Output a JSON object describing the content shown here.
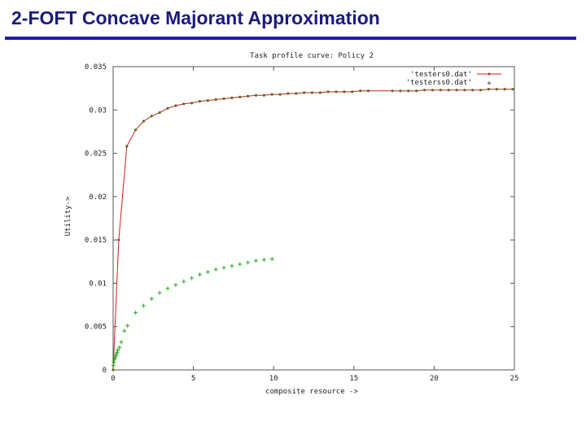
{
  "slide": {
    "title": "2-FOFT Concave Majorant Approximation"
  },
  "colors": {
    "title": "#1a1a80",
    "rule": "#1f1fa8",
    "series1": "#cc2020",
    "series2": "#22aa22"
  },
  "chart_data": {
    "type": "line",
    "title": "Task profile curve: Policy 2",
    "xlabel": "composite resource ->",
    "ylabel": "Utility->",
    "xlim": [
      0,
      25
    ],
    "ylim": [
      0,
      0.035
    ],
    "xticks": [
      "0",
      "5",
      "10",
      "15",
      "20",
      "25"
    ],
    "yticks": [
      "0",
      "0.005",
      "0.01",
      "0.015",
      "0.02",
      "0.025",
      "0.03",
      "0.035"
    ],
    "grid": false,
    "legend_position": "top-right",
    "series": [
      {
        "name": "'testers0.dat'",
        "style": "line with point markers",
        "x": [
          0,
          0.35,
          0.85,
          1.4,
          1.9,
          2.4,
          2.9,
          3.4,
          3.9,
          4.4,
          4.9,
          5.4,
          5.9,
          6.4,
          6.9,
          7.4,
          7.9,
          8.4,
          8.9,
          9.4,
          9.9,
          10.4,
          10.9,
          11.4,
          11.9,
          12.4,
          12.9,
          13.4,
          13.9,
          14.4,
          14.9,
          15.4,
          15.9,
          17.4,
          17.9,
          18.4,
          18.9,
          19.4,
          19.9,
          20.4,
          20.9,
          21.4,
          21.9,
          22.4,
          22.9,
          23.4,
          23.9,
          24.4,
          24.9
        ],
        "y": [
          0,
          0.015,
          0.0258,
          0.0277,
          0.0287,
          0.0293,
          0.0297,
          0.0302,
          0.0305,
          0.0307,
          0.0308,
          0.031,
          0.0311,
          0.0312,
          0.0313,
          0.0314,
          0.0315,
          0.0316,
          0.0317,
          0.0317,
          0.0318,
          0.0318,
          0.0319,
          0.0319,
          0.032,
          0.032,
          0.032,
          0.0321,
          0.0321,
          0.0321,
          0.0321,
          0.0322,
          0.0322,
          0.0322,
          0.0322,
          0.0322,
          0.0322,
          0.0323,
          0.0323,
          0.0323,
          0.0323,
          0.0323,
          0.0323,
          0.0323,
          0.0323,
          0.0324,
          0.0324,
          0.0324,
          0.0324
        ]
      },
      {
        "name": "'testerss0.dat'",
        "style": "plus markers",
        "x": [
          0.02,
          0.05,
          0.08,
          0.12,
          0.16,
          0.2,
          0.25,
          0.3,
          0.4,
          0.5,
          0.7,
          0.9,
          1.4,
          1.9,
          2.4,
          2.9,
          3.4,
          3.9,
          4.4,
          4.9,
          5.4,
          5.9,
          6.4,
          6.9,
          7.4,
          7.9,
          8.4,
          8.9,
          9.4,
          9.9
        ],
        "y": [
          0.0005,
          0.0009,
          0.0012,
          0.0014,
          0.0016,
          0.0018,
          0.002,
          0.0023,
          0.0026,
          0.0032,
          0.0045,
          0.0051,
          0.0066,
          0.0074,
          0.0082,
          0.0089,
          0.0094,
          0.0098,
          0.0102,
          0.0106,
          0.011,
          0.0113,
          0.0116,
          0.0118,
          0.012,
          0.0122,
          0.0124,
          0.0126,
          0.0127,
          0.0128
        ]
      }
    ]
  }
}
